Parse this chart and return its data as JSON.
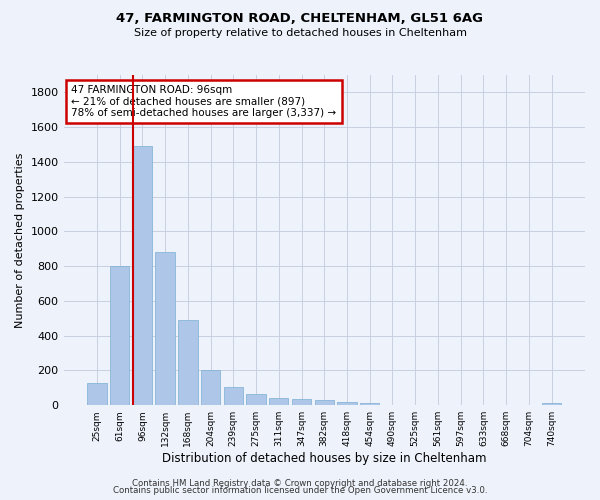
{
  "title1": "47, FARMINGTON ROAD, CHELTENHAM, GL51 6AG",
  "title2": "Size of property relative to detached houses in Cheltenham",
  "xlabel": "Distribution of detached houses by size in Cheltenham",
  "ylabel": "Number of detached properties",
  "categories": [
    "25sqm",
    "61sqm",
    "96sqm",
    "132sqm",
    "168sqm",
    "204sqm",
    "239sqm",
    "275sqm",
    "311sqm",
    "347sqm",
    "382sqm",
    "418sqm",
    "454sqm",
    "490sqm",
    "525sqm",
    "561sqm",
    "597sqm",
    "633sqm",
    "668sqm",
    "704sqm",
    "740sqm"
  ],
  "values": [
    125,
    800,
    1490,
    880,
    490,
    205,
    105,
    65,
    40,
    35,
    30,
    20,
    15,
    0,
    0,
    0,
    0,
    0,
    0,
    0,
    15
  ],
  "bar_color": "#aec6e8",
  "bar_edge_color": "#7aafd4",
  "highlight_index": 2,
  "annotation_line1": "47 FARMINGTON ROAD: 96sqm",
  "annotation_line2": "← 21% of detached houses are smaller (897)",
  "annotation_line3": "78% of semi-detached houses are larger (3,337) →",
  "annotation_box_color": "#ffffff",
  "annotation_box_edge": "#cc0000",
  "vline_color": "#cc0000",
  "ylim": [
    0,
    1900
  ],
  "yticks": [
    0,
    200,
    400,
    600,
    800,
    1000,
    1200,
    1400,
    1600,
    1800
  ],
  "footer1": "Contains HM Land Registry data © Crown copyright and database right 2024.",
  "footer2": "Contains public sector information licensed under the Open Government Licence v3.0.",
  "background_color": "#eef2fa",
  "grid_color": "#c8cfe0"
}
